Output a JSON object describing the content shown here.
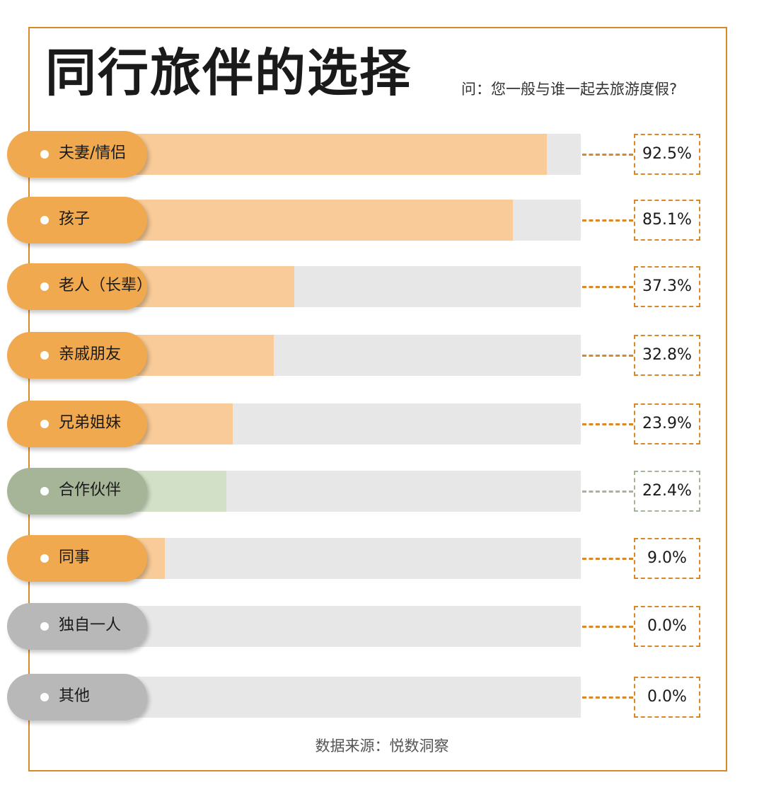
{
  "header": {
    "title": "同行旅伴的选择",
    "question": "问：您一般与谁一起去旅游度假?"
  },
  "footer": {
    "source": "数据来源：悦数洞察"
  },
  "colors": {
    "frame": "#d9892b",
    "pill_orange": "#f0a94e",
    "fill_orange": "#f8cb98",
    "pill_green": "#a6b597",
    "fill_green": "#d2e0c7",
    "pill_gray": "#b8b8b8",
    "track": "#e7e7e7",
    "dash_orange": "#d9892b",
    "dash_green": "#a6b597"
  },
  "chart_data": {
    "type": "bar",
    "orientation": "horizontal",
    "unit": "%",
    "xlim": [
      0,
      100
    ],
    "categories": [
      "夫妻/情侣",
      "孩子",
      "老人（长辈）",
      "亲戚朋友",
      "兄弟姐妹",
      "合作伙伴",
      "同事",
      "独自一人",
      "其他"
    ],
    "values": [
      92.5,
      85.1,
      37.3,
      32.8,
      23.9,
      22.4,
      9.0,
      0.0,
      0.0
    ],
    "value_labels": [
      "92.5%",
      "85.1%",
      "37.3%",
      "32.8%",
      "23.9%",
      "22.4%",
      "9.0%",
      "0.0%",
      "0.0%"
    ],
    "color_groups": [
      "orange",
      "orange",
      "orange",
      "orange",
      "orange",
      "green",
      "orange",
      "gray",
      "gray"
    ]
  }
}
